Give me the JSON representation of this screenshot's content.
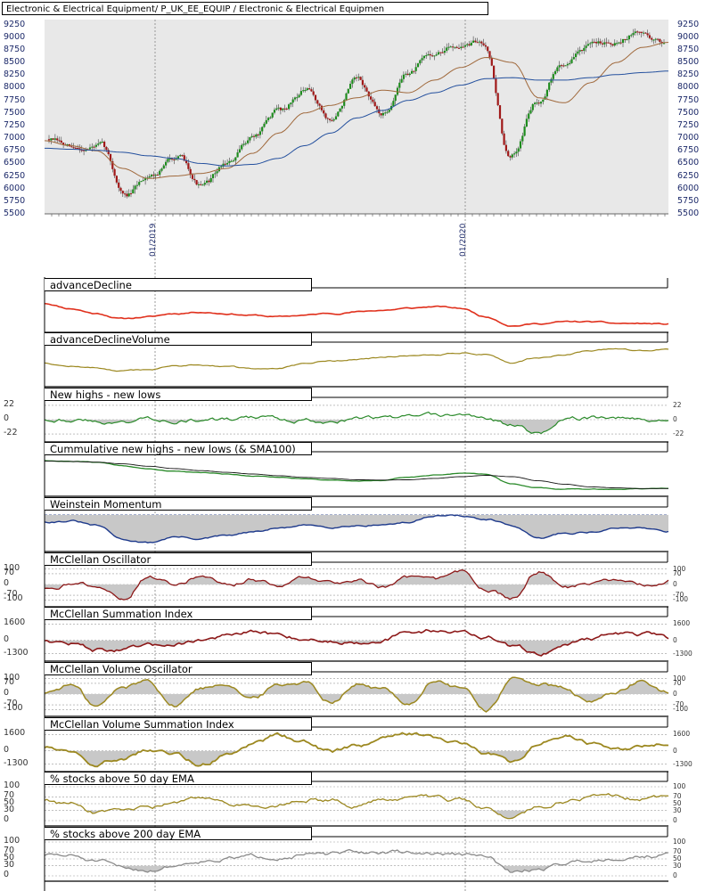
{
  "header": {
    "title": "Electronic & Electrical Equipment/ P_UK_EE_EQUIP / Electronic & Electrical Equipmen"
  },
  "colors": {
    "background": "#e8e8e8",
    "up_candle": "#1e8c1e",
    "down_candle": "#a01818",
    "sma50": "#a0693c",
    "sma200": "#24509e",
    "advance_decline": "#e0301c",
    "olive": "#9c8820",
    "green": "#2a8a2a",
    "dark_red": "#8c1818",
    "navy": "#1e3a8c",
    "gray": "#8a8a8a",
    "shade": "#c8c8c8"
  },
  "chart_data": [
    {
      "type": "candlestick",
      "title": "Electronic & Electrical Equipment/ P_UK_EE_EQUIP / Electronic & Electrical Equipmen",
      "x_labels": [
        "01/2019",
        "01/2020"
      ],
      "y_ticks": [
        5500,
        5750,
        6000,
        6250,
        6500,
        6750,
        7000,
        7250,
        7500,
        7750,
        8000,
        8250,
        8500,
        8750,
        9000,
        9250
      ],
      "ylim": [
        5500,
        9350
      ],
      "x_range": [
        "2018-09",
        "2020-09"
      ],
      "price_path": [
        [
          "2018-09",
          6980
        ],
        [
          "2018-10",
          6750
        ],
        [
          "2018-11",
          6850
        ],
        [
          "2018-12",
          5850
        ],
        [
          "2019-01",
          6300
        ],
        [
          "2019-02",
          6650
        ],
        [
          "2019-03",
          6050
        ],
        [
          "2019-04",
          6500
        ],
        [
          "2019-05",
          7050
        ],
        [
          "2019-06",
          7550
        ],
        [
          "2019-07",
          7950
        ],
        [
          "2019-08",
          7350
        ],
        [
          "2019-09",
          8100
        ],
        [
          "2019-10",
          7450
        ],
        [
          "2019-11",
          8300
        ],
        [
          "2019-12",
          8650
        ],
        [
          "2020-01",
          8850
        ],
        [
          "2020-02",
          8900
        ],
        [
          "2020-03",
          6600
        ],
        [
          "2020-04",
          7700
        ],
        [
          "2020-05",
          8450
        ],
        [
          "2020-06",
          8800
        ],
        [
          "2020-07",
          8950
        ],
        [
          "2020-08",
          9100
        ],
        [
          "2020-09",
          8900
        ]
      ],
      "series": [
        {
          "name": "SMA50",
          "values": [
            6950,
            6850,
            6750,
            6400,
            6200,
            6250,
            6300,
            6400,
            6700,
            7100,
            7500,
            7650,
            7800,
            7950,
            7900,
            8150,
            8400,
            8600,
            8500,
            7800,
            7700,
            8100,
            8500,
            8800,
            8900
          ]
        },
        {
          "name": "SMA200",
          "values": [
            6800,
            6780,
            6760,
            6720,
            6650,
            6600,
            6500,
            6450,
            6480,
            6600,
            6850,
            7100,
            7400,
            7550,
            7750,
            7900,
            8050,
            8180,
            8200,
            8150,
            8150,
            8200,
            8260,
            8300,
            8330
          ]
        }
      ]
    },
    {
      "type": "line",
      "title": "advanceDecline",
      "values": [
        0.7,
        0.55,
        0.4,
        0.25,
        0.3,
        0.4,
        0.45,
        0.4,
        0.35,
        0.3,
        0.35,
        0.4,
        0.45,
        0.5,
        0.55,
        0.6,
        0.55,
        0.3,
        0.05,
        0.1,
        0.15,
        0.15,
        0.1,
        0.1,
        0.08
      ]
    },
    {
      "type": "line",
      "title": "advanceDeclineVolume",
      "values": [
        0.55,
        0.45,
        0.4,
        0.3,
        0.35,
        0.45,
        0.5,
        0.45,
        0.35,
        0.4,
        0.5,
        0.6,
        0.65,
        0.7,
        0.75,
        0.8,
        0.85,
        0.8,
        0.55,
        0.7,
        0.8,
        0.9,
        0.95,
        0.9,
        0.95
      ]
    },
    {
      "type": "line",
      "title": "New highs - new lows",
      "y_ticks": [
        22,
        0,
        -22
      ],
      "ylim": [
        -26,
        26
      ],
      "values": [
        1,
        2,
        -3,
        -4,
        2,
        1,
        0,
        -1,
        2,
        1,
        0,
        -2,
        2,
        1,
        3,
        4,
        6,
        2,
        -8,
        -22,
        1,
        3,
        2,
        1,
        0
      ]
    },
    {
      "type": "line",
      "title": "Cummulative new highs - new lows (& SMA100)",
      "series": [
        {
          "name": "",
          "values": [
            0.9,
            0.88,
            0.85,
            0.75,
            0.65,
            0.58,
            0.55,
            0.5,
            0.45,
            0.4,
            0.36,
            0.33,
            0.3,
            0.32,
            0.4,
            0.48,
            0.52,
            0.5,
            0.2,
            0.1,
            0.06,
            0.05,
            0.05,
            0.06,
            0.08
          ]
        },
        {
          "name": "",
          "values": [
            0.88,
            0.87,
            0.85,
            0.8,
            0.73,
            0.66,
            0.6,
            0.55,
            0.5,
            0.45,
            0.4,
            0.37,
            0.33,
            0.32,
            0.33,
            0.37,
            0.42,
            0.46,
            0.42,
            0.3,
            0.2,
            0.12,
            0.09,
            0.07,
            0.07
          ]
        }
      ]
    },
    {
      "type": "line",
      "title": "Weinstein Momentum",
      "values": [
        0.45,
        0.5,
        0.2,
        -0.6,
        -0.8,
        -0.45,
        -0.55,
        -0.4,
        -0.2,
        0.05,
        0.2,
        0.15,
        0.25,
        0.3,
        0.4,
        0.85,
        0.8,
        0.55,
        0.2,
        -0.6,
        -0.25,
        -0.15,
        0.05,
        0.1,
        -0.1
      ]
    },
    {
      "type": "line",
      "title": "McClellan Oscillator",
      "y_ticks": [
        100,
        70,
        0,
        -70,
        -100
      ],
      "ylim": [
        -110,
        110
      ],
      "values": [
        -20,
        10,
        -5,
        -95,
        60,
        -10,
        55,
        -20,
        30,
        -10,
        40,
        10,
        35,
        -20,
        40,
        10,
        75,
        -40,
        -90,
        90,
        -30,
        10,
        30,
        -15,
        20
      ]
    },
    {
      "type": "line",
      "title": "McClellan Summation Index",
      "y_ticks": [
        1600,
        0,
        -1300
      ],
      "ylim": [
        -1500,
        1800
      ],
      "values": [
        50,
        -300,
        -900,
        -950,
        -700,
        -300,
        100,
        400,
        700,
        500,
        200,
        -50,
        -100,
        200,
        700,
        1000,
        900,
        300,
        -700,
        -1300,
        -400,
        300,
        700,
        600,
        100
      ]
    },
    {
      "type": "line",
      "title": "McClellan Volume Oscillator",
      "y_ticks": [
        100,
        70,
        0,
        -70,
        -100
      ],
      "ylim": [
        -110,
        110
      ],
      "values": [
        10,
        60,
        -80,
        40,
        90,
        -70,
        40,
        80,
        -30,
        60,
        85,
        -40,
        70,
        30,
        -60,
        85,
        40,
        -100,
        95,
        70,
        30,
        -60,
        20,
        80,
        10
      ]
    },
    {
      "type": "line",
      "title": "McClellan Volume Summation Index",
      "y_ticks": [
        1600,
        0,
        -1300
      ],
      "ylim": [
        -1500,
        1800
      ],
      "values": [
        400,
        200,
        -1000,
        -600,
        300,
        -400,
        -1200,
        -300,
        800,
        1400,
        700,
        -200,
        400,
        1100,
        1600,
        1200,
        700,
        -100,
        -1100,
        800,
        1300,
        700,
        200,
        300,
        600
      ]
    },
    {
      "type": "line",
      "title": "% stocks above 50 day EMA",
      "y_ticks": [
        100,
        70,
        50,
        30,
        0
      ],
      "ylim": [
        0,
        100
      ],
      "values": [
        62,
        48,
        22,
        18,
        32,
        55,
        70,
        50,
        42,
        52,
        68,
        60,
        45,
        58,
        66,
        62,
        58,
        30,
        5,
        40,
        60,
        70,
        68,
        62,
        65
      ]
    },
    {
      "type": "line",
      "title": "% stocks above 200 day EMA",
      "y_ticks": [
        100,
        70,
        50,
        30,
        0
      ],
      "ylim": [
        0,
        100
      ],
      "values": [
        62,
        58,
        42,
        20,
        18,
        32,
        48,
        52,
        56,
        60,
        64,
        62,
        66,
        70,
        68,
        66,
        62,
        54,
        8,
        20,
        38,
        48,
        56,
        60,
        62
      ]
    }
  ]
}
